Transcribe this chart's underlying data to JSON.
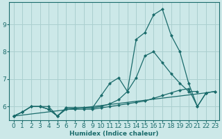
{
  "xlabel": "Humidex (Indice chaleur)",
  "bg_color": "#cce8e8",
  "grid_color": "#aacfcf",
  "line_color": "#1a6b6b",
  "xlim": [
    -0.5,
    23.5
  ],
  "ylim": [
    5.5,
    9.8
  ],
  "xticks": [
    0,
    1,
    2,
    3,
    4,
    5,
    6,
    7,
    8,
    9,
    10,
    11,
    12,
    13,
    14,
    15,
    16,
    17,
    18,
    19,
    20,
    21,
    22,
    23
  ],
  "yticks": [
    6,
    7,
    8,
    9
  ],
  "line1_x": [
    0,
    1,
    2,
    3,
    4,
    5,
    6,
    7,
    8,
    9,
    10,
    11,
    12,
    13,
    14,
    15,
    16,
    17,
    18,
    19,
    20,
    21,
    22
  ],
  "line1_y": [
    5.65,
    5.8,
    6.0,
    6.0,
    6.0,
    5.65,
    5.95,
    5.95,
    5.95,
    5.95,
    6.4,
    6.85,
    7.05,
    6.55,
    8.45,
    8.7,
    9.35,
    9.55,
    8.6,
    8.0,
    6.85,
    6.0,
    6.5
  ],
  "line2_x": [
    0,
    1,
    2,
    3,
    4,
    5,
    6,
    7,
    8,
    9,
    10,
    11,
    12,
    13,
    14,
    15,
    16,
    17,
    18,
    19,
    20,
    21,
    22,
    23
  ],
  "line2_y": [
    5.65,
    5.8,
    6.0,
    6.0,
    5.9,
    5.65,
    5.9,
    5.9,
    5.9,
    5.9,
    5.95,
    6.0,
    6.05,
    6.1,
    6.15,
    6.2,
    6.3,
    6.4,
    6.5,
    6.6,
    6.65,
    6.0,
    6.5,
    6.55
  ],
  "line3_x": [
    0,
    1,
    2,
    3,
    4,
    5,
    6,
    7,
    8,
    9,
    10,
    11,
    12,
    13,
    14,
    15,
    16,
    17,
    18,
    19,
    20,
    21
  ],
  "line3_y": [
    5.65,
    5.8,
    6.0,
    6.0,
    5.9,
    5.65,
    5.95,
    5.95,
    5.95,
    5.95,
    6.0,
    6.1,
    6.25,
    6.55,
    7.05,
    7.85,
    8.0,
    7.6,
    7.2,
    6.85,
    6.55,
    6.55
  ],
  "line4_x": [
    0,
    22,
    23
  ],
  "line4_y": [
    5.65,
    6.5,
    6.55
  ]
}
